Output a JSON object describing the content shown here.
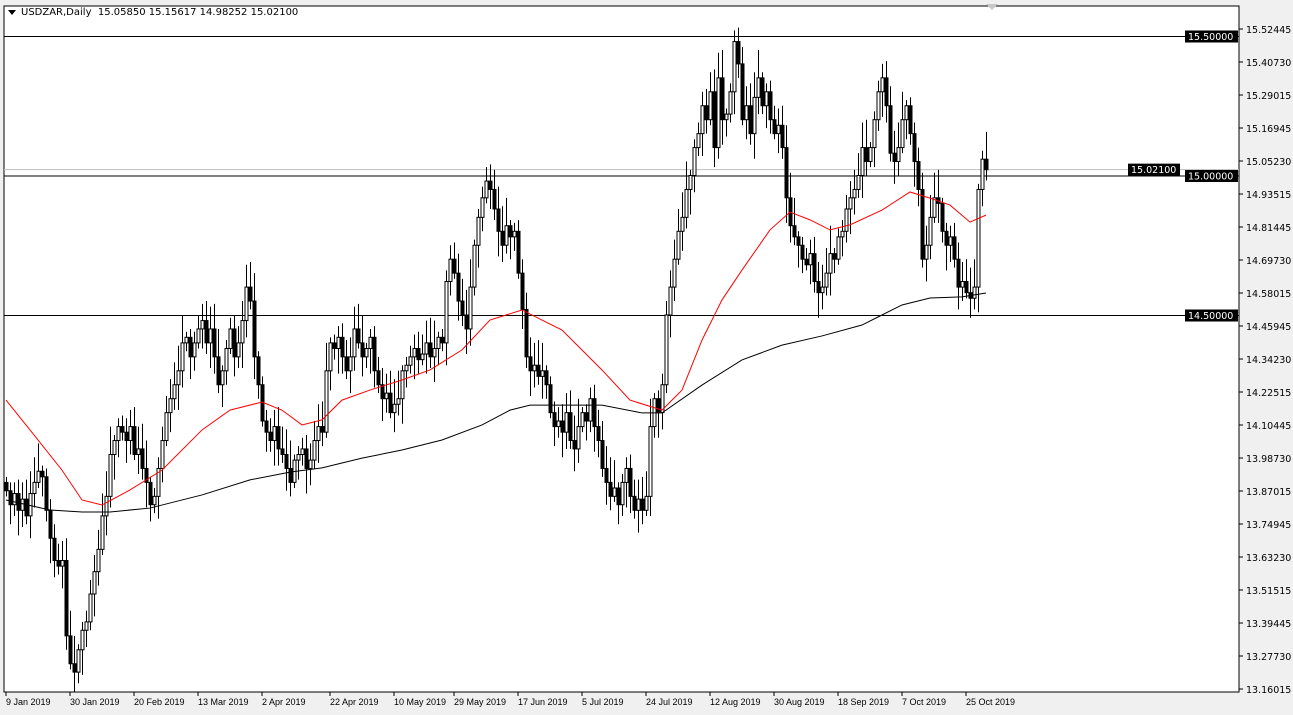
{
  "header": {
    "symbol": "USDZAR,Daily",
    "open": "15.05850",
    "high": "15.15617",
    "low": "14.98252",
    "close": "15.02100"
  },
  "colors": {
    "background": "#ffffff",
    "candle": "#000000",
    "ma_fast": "#ff0000",
    "ma_slow": "#000000",
    "price_label_bg": "#000000",
    "price_label_text": "#ffffff",
    "current_price_line": "#c0c0c0"
  },
  "chart_data": {
    "type": "candlestick",
    "title": "USDZAR,Daily",
    "ylim": [
      13.16015,
      15.52445
    ],
    "y_ticks": [
      "15.52445",
      "15.40730",
      "15.29015",
      "15.16945",
      "15.05230",
      "14.93515",
      "14.81445",
      "14.69730",
      "14.58015",
      "14.45945",
      "14.34230",
      "14.22515",
      "14.10445",
      "13.98730",
      "13.87015",
      "13.74945",
      "13.63230",
      "13.51515",
      "13.39445",
      "13.27730",
      "13.16015"
    ],
    "x_ticks": [
      {
        "bar": 0,
        "label": "9 Jan 2019"
      },
      {
        "bar": 16,
        "label": "30 Jan 2019"
      },
      {
        "bar": 32,
        "label": "20 Feb 2019"
      },
      {
        "bar": 48,
        "label": "13 Mar 2019"
      },
      {
        "bar": 64,
        "label": "2 Apr 2019"
      },
      {
        "bar": 81,
        "label": "22 Apr 2019"
      },
      {
        "bar": 97,
        "label": "10 May 2019"
      },
      {
        "bar": 112,
        "label": "29 May 2019"
      },
      {
        "bar": 128,
        "label": "17 Jun 2019"
      },
      {
        "bar": 144,
        "label": "5 Jul 2019"
      },
      {
        "bar": 160,
        "label": "24 Jul 2019"
      },
      {
        "bar": 176,
        "label": "12 Aug 2019"
      },
      {
        "bar": 192,
        "label": "30 Aug 2019"
      },
      {
        "bar": 208,
        "label": "18 Sep 2019"
      },
      {
        "bar": 224,
        "label": "7 Oct 2019"
      },
      {
        "bar": 240,
        "label": "25 Oct 2019"
      }
    ],
    "horizontal_levels": [
      {
        "price": 15.5,
        "label": "15.50000"
      },
      {
        "price": 15.0,
        "label": "15.00000"
      },
      {
        "price": 14.5,
        "label": "14.50000"
      }
    ],
    "current_price": {
      "price": 15.021,
      "label": "15.02100"
    },
    "closes": [
      13.87,
      13.82,
      13.86,
      13.8,
      13.84,
      13.78,
      13.86,
      13.9,
      13.94,
      13.92,
      13.8,
      13.7,
      13.62,
      13.6,
      13.62,
      13.35,
      13.25,
      13.22,
      13.3,
      13.37,
      13.4,
      13.5,
      13.58,
      13.66,
      13.78,
      13.85,
      14.0,
      14.05,
      14.1,
      14.08,
      14.05,
      14.1,
      14.0,
      14.02,
      13.95,
      13.9,
      13.82,
      13.85,
      13.95,
      14.05,
      14.15,
      14.2,
      14.25,
      14.3,
      14.4,
      14.42,
      14.35,
      14.4,
      14.45,
      14.48,
      14.4,
      14.45,
      14.35,
      14.25,
      14.3,
      14.38,
      14.45,
      14.35,
      14.4,
      14.48,
      14.6,
      14.55,
      14.35,
      14.25,
      14.12,
      14.08,
      14.05,
      14.1,
      14.02,
      14.0,
      13.95,
      13.9,
      13.98,
      14.0,
      14.02,
      13.95,
      13.98,
      14.05,
      14.1,
      14.08,
      14.3,
      14.4,
      14.38,
      14.42,
      14.35,
      14.3,
      14.35,
      14.45,
      14.4,
      14.35,
      14.38,
      14.42,
      14.3,
      14.25,
      14.2,
      14.22,
      14.15,
      14.18,
      14.2,
      14.3,
      14.32,
      14.35,
      14.38,
      14.34,
      14.36,
      14.4,
      14.35,
      14.38,
      14.42,
      14.4,
      14.62,
      14.7,
      14.65,
      14.55,
      14.5,
      14.45,
      14.6,
      14.75,
      14.85,
      14.92,
      14.98,
      14.95,
      14.88,
      14.8,
      14.75,
      14.82,
      14.78,
      14.8,
      14.65,
      14.52,
      14.35,
      14.3,
      14.32,
      14.28,
      14.3,
      14.25,
      14.15,
      14.1,
      14.12,
      14.08,
      14.15,
      14.05,
      14.02,
      14.1,
      14.15,
      14.12,
      14.2,
      14.1,
      14.05,
      13.95,
      13.9,
      13.85,
      13.88,
      13.82,
      13.9,
      13.95,
      13.85,
      13.8,
      13.84,
      13.8,
      13.85,
      14.1,
      14.2,
      14.15,
      14.25,
      14.5,
      14.6,
      14.7,
      14.8,
      14.85,
      14.95,
      15.0,
      15.1,
      15.15,
      15.25,
      15.2,
      15.3,
      15.1,
      15.35,
      15.2,
      15.22,
      15.3,
      15.48,
      15.4,
      15.2,
      15.25,
      15.15,
      15.28,
      15.35,
      15.25,
      15.3,
      15.2,
      15.15,
      15.18,
      15.1,
      14.92,
      14.82,
      14.78,
      14.75,
      14.7,
      14.68,
      14.72,
      14.62,
      14.58,
      14.6,
      14.65,
      14.72,
      14.7,
      14.78,
      14.8,
      14.88,
      14.92,
      14.95,
      15.0,
      15.1,
      15.05,
      15.1,
      15.2,
      15.3,
      15.35,
      15.25,
      15.08,
      15.05,
      15.1,
      15.2,
      15.25,
      15.15,
      15.05,
      14.95,
      14.7,
      14.75,
      14.85,
      14.92,
      14.9,
      14.8,
      14.75,
      14.78,
      14.7,
      14.6,
      14.62,
      14.58,
      14.56,
      14.6,
      14.95,
      15.0585,
      15.021
    ],
    "last_bar": {
      "open": 15.0585,
      "high": 15.15617,
      "low": 14.98252,
      "close": 15.021
    },
    "series": [
      {
        "color": "#ff0000",
        "points": [
          [
            0,
            14.195
          ],
          [
            6,
            14.088
          ],
          [
            14,
            13.944
          ],
          [
            19,
            13.837
          ],
          [
            24,
            13.819
          ],
          [
            31,
            13.873
          ],
          [
            39,
            13.944
          ],
          [
            49,
            14.088
          ],
          [
            56,
            14.159
          ],
          [
            64,
            14.188
          ],
          [
            69,
            14.159
          ],
          [
            74,
            14.106
          ],
          [
            79,
            14.124
          ],
          [
            84,
            14.195
          ],
          [
            91,
            14.231
          ],
          [
            99,
            14.267
          ],
          [
            106,
            14.303
          ],
          [
            114,
            14.375
          ],
          [
            121,
            14.482
          ],
          [
            129,
            14.518
          ],
          [
            134,
            14.482
          ],
          [
            139,
            14.446
          ],
          [
            149,
            14.303
          ],
          [
            156,
            14.195
          ],
          [
            164,
            14.159
          ],
          [
            169,
            14.231
          ],
          [
            174,
            14.41
          ],
          [
            179,
            14.554
          ],
          [
            184,
            14.661
          ],
          [
            191,
            14.805
          ],
          [
            196,
            14.869
          ],
          [
            201,
            14.841
          ],
          [
            206,
            14.805
          ],
          [
            211,
            14.823
          ],
          [
            219,
            14.876
          ],
          [
            226,
            14.941
          ],
          [
            231,
            14.919
          ],
          [
            236,
            14.894
          ],
          [
            241,
            14.833
          ],
          [
            245,
            14.858
          ]
        ]
      },
      {
        "color": "#000000",
        "points": [
          [
            0,
            13.837
          ],
          [
            11,
            13.801
          ],
          [
            19,
            13.794
          ],
          [
            26,
            13.794
          ],
          [
            36,
            13.808
          ],
          [
            49,
            13.855
          ],
          [
            61,
            13.909
          ],
          [
            71,
            13.937
          ],
          [
            79,
            13.952
          ],
          [
            89,
            13.987
          ],
          [
            99,
            14.016
          ],
          [
            109,
            14.052
          ],
          [
            119,
            14.106
          ],
          [
            126,
            14.159
          ],
          [
            131,
            14.177
          ],
          [
            139,
            14.177
          ],
          [
            149,
            14.177
          ],
          [
            159,
            14.149
          ],
          [
            164,
            14.149
          ],
          [
            174,
            14.249
          ],
          [
            184,
            14.339
          ],
          [
            194,
            14.392
          ],
          [
            204,
            14.425
          ],
          [
            214,
            14.464
          ],
          [
            219,
            14.5
          ],
          [
            224,
            14.536
          ],
          [
            231,
            14.561
          ],
          [
            239,
            14.565
          ],
          [
            245,
            14.579
          ]
        ]
      }
    ]
  }
}
